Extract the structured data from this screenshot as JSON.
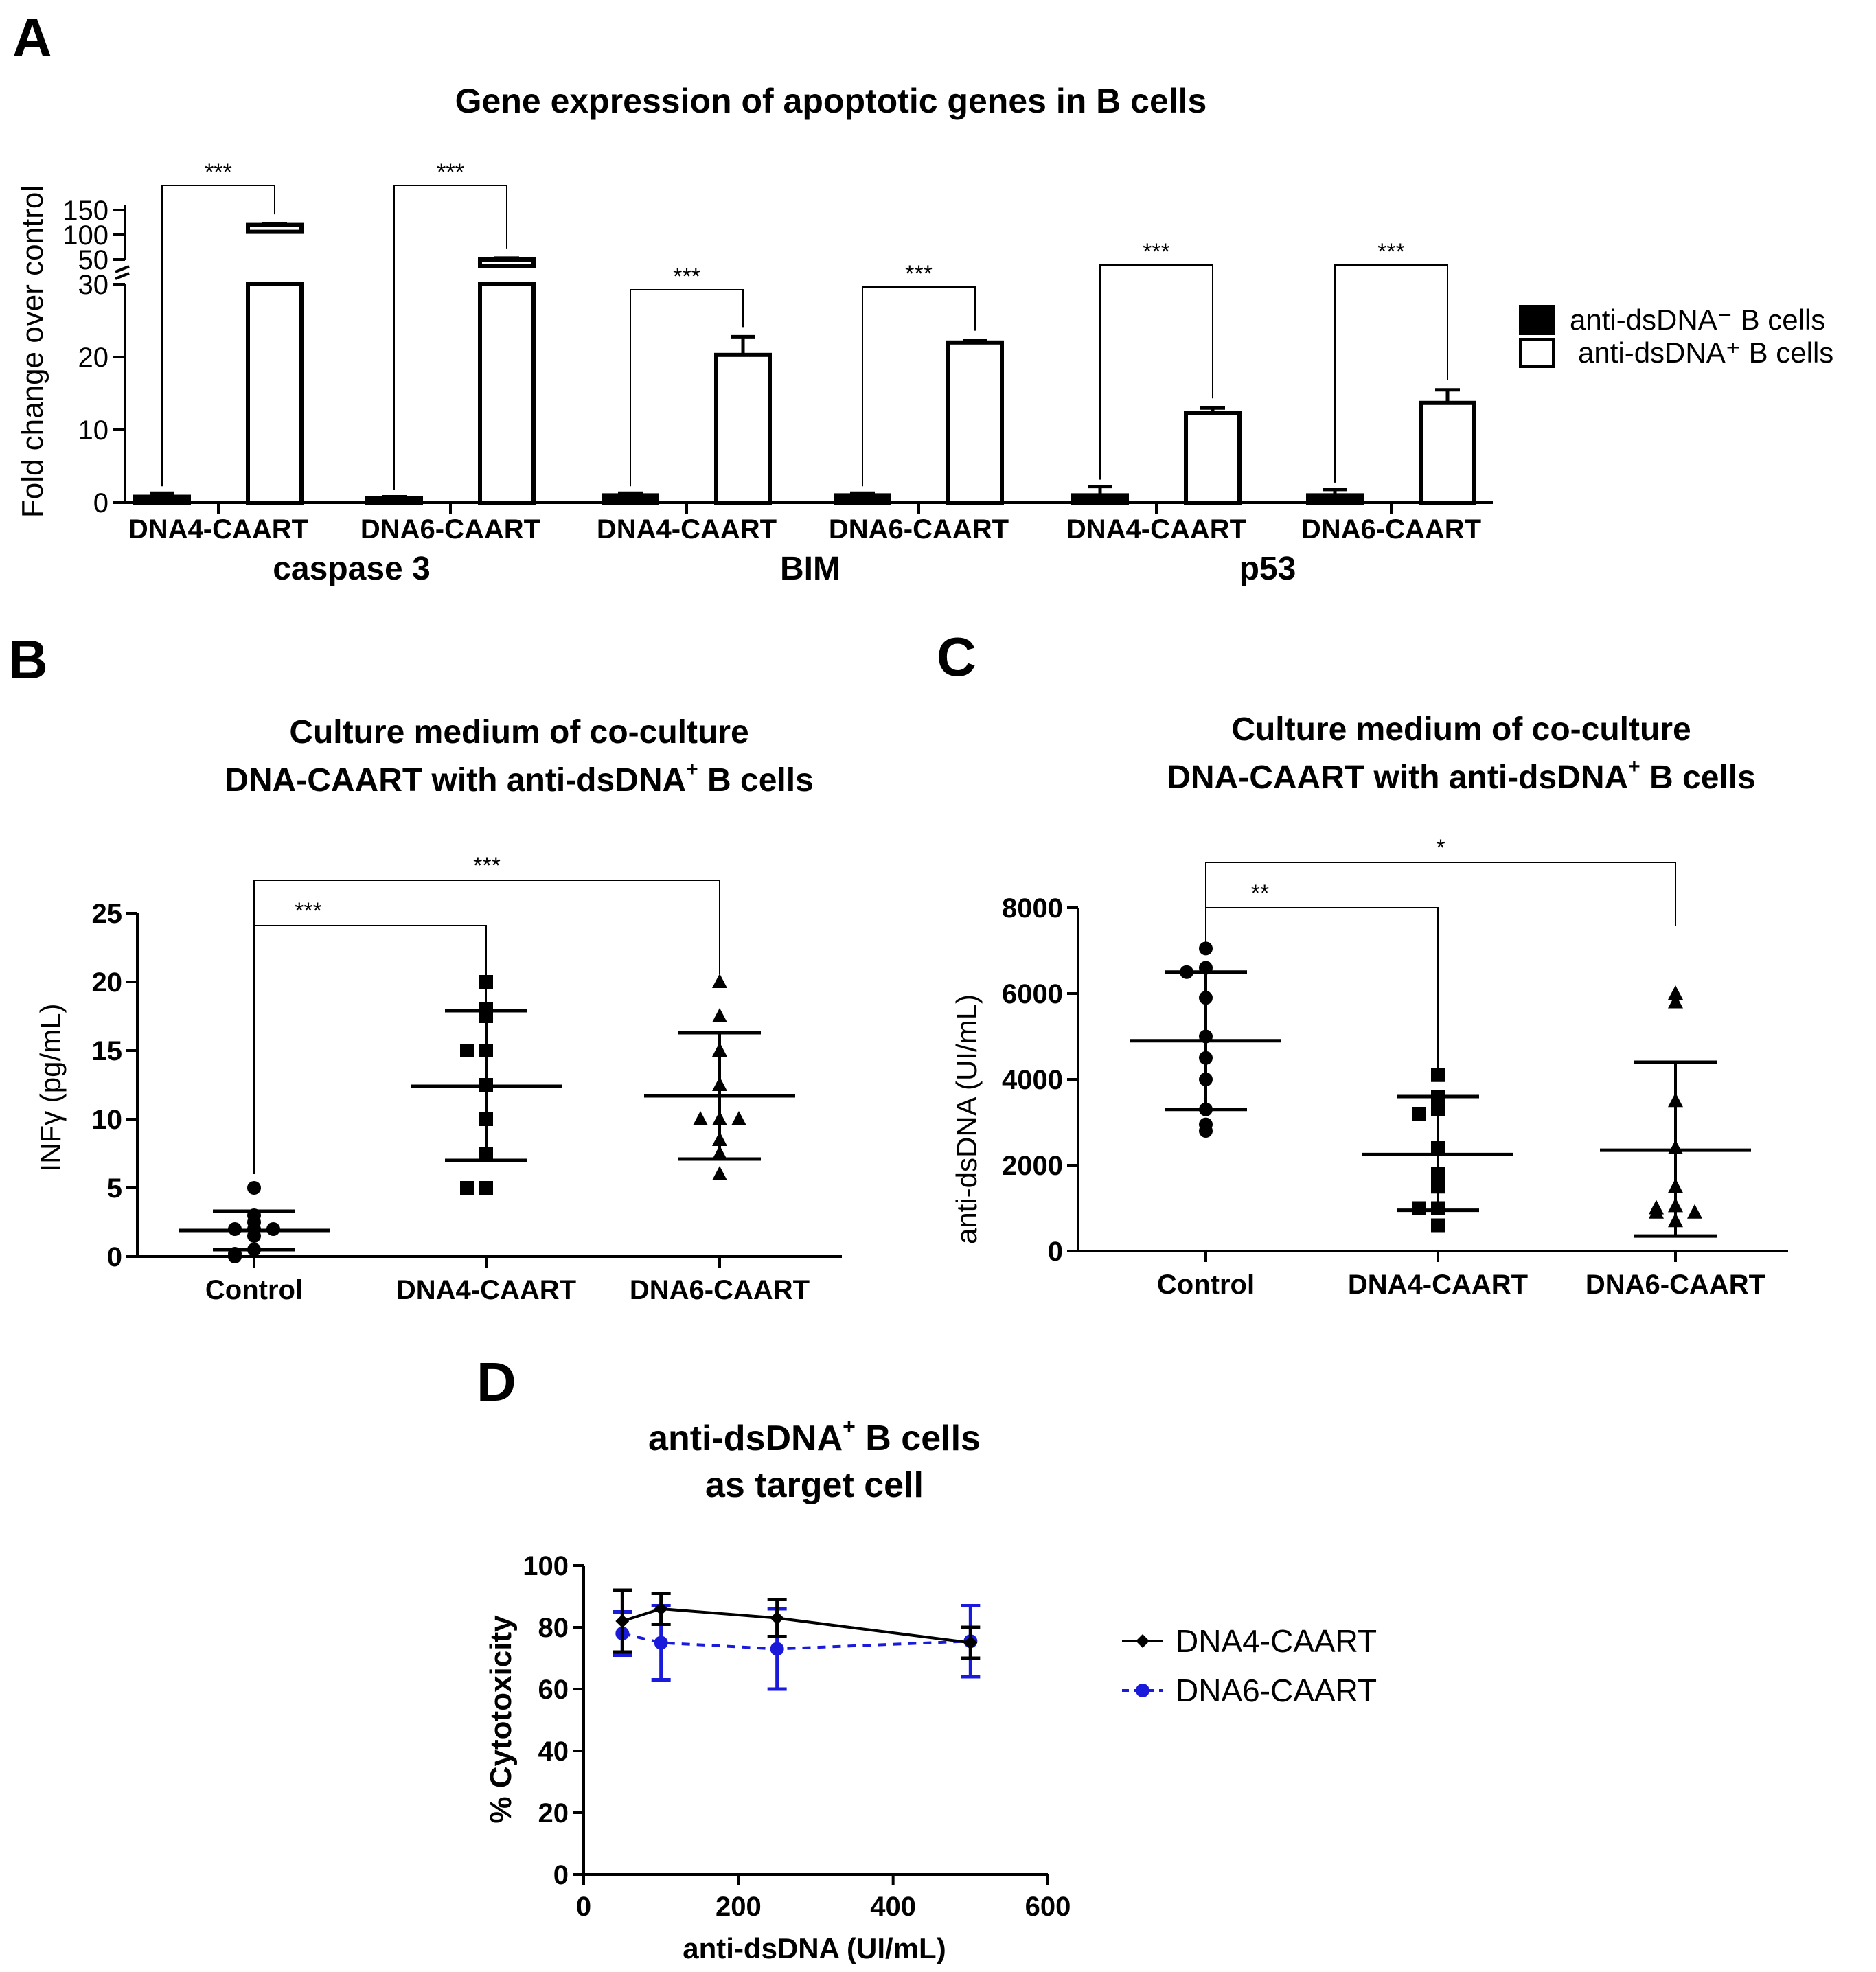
{
  "panels": {
    "A": {
      "letter": "A"
    },
    "B": {
      "letter": "B"
    },
    "C": {
      "letter": "C"
    },
    "D": {
      "letter": "D"
    }
  },
  "chart_data": [
    {
      "id": "A",
      "type": "bar",
      "title": "Gene expression of apoptotic genes in B cells",
      "ylabel": "Fold change over control",
      "xlabel": "",
      "axis_break": {
        "lower_range": [
          0,
          30
        ],
        "upper_range": [
          50,
          150
        ]
      },
      "yticks_lower": [
        "0",
        "10",
        "20",
        "30"
      ],
      "yticks_upper": [
        "50",
        "100",
        "150"
      ],
      "groups": [
        {
          "gene": "caspase 3",
          "categories": [
            "DNA4-CAART",
            "DNA6-CAART"
          ]
        },
        {
          "gene": "BIM",
          "categories": [
            "DNA4-CAART",
            "DNA6-CAART"
          ]
        },
        {
          "gene": "p53",
          "categories": [
            "DNA4-CAART",
            "DNA6-CAART"
          ]
        }
      ],
      "series": [
        {
          "name": "anti-dsDNA⁻ B cells",
          "fill": "#000000",
          "values": [
            0.8,
            0.6,
            1.0,
            1.0,
            1.0,
            1.0
          ],
          "errors": [
            0.5,
            0.2,
            0.3,
            0.3,
            1.2,
            0.8
          ]
        },
        {
          "name": "anti-dsDNA⁺ B cells",
          "fill": "#ffffff",
          "values": [
            120,
            50,
            20.3,
            22.0,
            12.3,
            13.7
          ],
          "errors": [
            2,
            3,
            2.5,
            0.3,
            0.7,
            1.8
          ]
        }
      ],
      "significance": [
        "***",
        "***",
        "***",
        "***",
        "***",
        "***"
      ],
      "legend_position": "right"
    },
    {
      "id": "B",
      "type": "scatter",
      "title_line1": "Culture medium of co-culture",
      "title_line2_main": "DNA-CAART with anti-dsDNA",
      "title_line2_sup": "+",
      "title_line2_tail": " B cells",
      "ylabel": "INFγ  (pg/mL)",
      "ylim": [
        0,
        25
      ],
      "yticks": [
        "0",
        "5",
        "10",
        "15",
        "20",
        "25"
      ],
      "categories": [
        "Control",
        "DNA4-CAART",
        "DNA6-CAART"
      ],
      "markers": [
        "circle",
        "square",
        "triangle"
      ],
      "groups": [
        {
          "points": [
            5,
            3,
            2.5,
            2,
            2,
            2,
            1.5,
            0.5,
            0.2,
            0
          ],
          "mean": 1.9,
          "sd_low": 0.5,
          "sd_high": 3.3
        },
        {
          "points": [
            20,
            18,
            17.5,
            15,
            15,
            12.5,
            10,
            7.5,
            5,
            5
          ],
          "mean": 12.4,
          "sd_low": 7.0,
          "sd_high": 17.9
        },
        {
          "points": [
            20,
            17.5,
            15,
            12.5,
            10,
            10,
            10,
            8.5,
            7.5,
            6
          ],
          "mean": 11.7,
          "sd_low": 7.1,
          "sd_high": 16.3
        }
      ],
      "comparisons": [
        {
          "from": 0,
          "to": 1,
          "label": "***"
        },
        {
          "from": 0,
          "to": 2,
          "label": "***"
        }
      ]
    },
    {
      "id": "C",
      "type": "scatter",
      "title_line1": "Culture medium of co-culture",
      "title_line2_main": "DNA-CAART with anti-dsDNA",
      "title_line2_sup": "+",
      "title_line2_tail": " B cells",
      "ylabel": "anti-dsDNA  (UI/mL)",
      "ylim": [
        0,
        8000
      ],
      "yticks": [
        "0",
        "2000",
        "4000",
        "6000",
        "8000"
      ],
      "categories": [
        "Control",
        "DNA4-CAART",
        "DNA6-CAART"
      ],
      "markers": [
        "circle",
        "square",
        "triangle"
      ],
      "groups": [
        {
          "points": [
            7050,
            6600,
            6500,
            5900,
            5000,
            4500,
            4000,
            3300,
            2950,
            2800
          ],
          "mean": 4900,
          "sd_low": 3300,
          "sd_high": 6500
        },
        {
          "points": [
            4100,
            3600,
            3300,
            3200,
            2400,
            1800,
            1500,
            1000,
            1000,
            600
          ],
          "mean": 2250,
          "sd_low": 950,
          "sd_high": 3600
        },
        {
          "points": [
            6000,
            5800,
            3500,
            2400,
            1500,
            1050,
            1000,
            900,
            900,
            700
          ],
          "mean": 2350,
          "sd_low": 350,
          "sd_high": 4400
        }
      ],
      "comparisons": [
        {
          "from": 0,
          "to": 1,
          "label": "**"
        },
        {
          "from": 0,
          "to": 2,
          "label": "*"
        }
      ]
    },
    {
      "id": "D",
      "type": "line",
      "title_line1_main": "anti-dsDNA",
      "title_line1_sup": "+",
      "title_line1_tail": " B cells",
      "title_line2": "as target cell",
      "xlabel": "anti-dsDNA (UI/mL)",
      "ylabel": "% Cytotoxicity",
      "xlim": [
        0,
        600
      ],
      "ylim": [
        0,
        100
      ],
      "xticks": [
        "0",
        "200",
        "400",
        "600"
      ],
      "yticks": [
        "0",
        "20",
        "40",
        "60",
        "80",
        "100"
      ],
      "x": [
        50,
        100,
        250,
        500
      ],
      "series": [
        {
          "name": "DNA4-CAART",
          "color": "#000000",
          "dashed": false,
          "values": [
            82,
            86,
            83,
            75
          ],
          "errors": [
            10,
            5,
            6,
            5
          ]
        },
        {
          "name": "DNA6-CAART",
          "color": "#1a1adb",
          "dashed": true,
          "values": [
            78,
            75,
            73,
            75.5
          ],
          "errors": [
            7,
            12,
            13,
            11.5
          ]
        }
      ],
      "legend_position": "right"
    }
  ]
}
